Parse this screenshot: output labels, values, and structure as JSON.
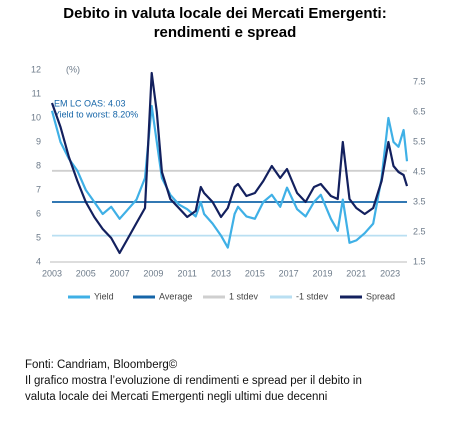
{
  "chart_data": {
    "type": "line",
    "title": "Debito in valuta locale dei Mercati Emergenti:",
    "subtitle": "rendimenti e spread",
    "y_unit": "(%)",
    "annotations": [
      "EM LC OAS: 4.03",
      "Yield to worst: 8.20%"
    ],
    "source": "Fonti: Candriam, Bloomberg©",
    "caption": [
      "Il grafico mostra l’evoluzione di rendimenti e spread per il debito in",
      "valuta locale dei Mercati Emergenti negli ultimi due decenni"
    ],
    "xlim": [
      2003,
      2024
    ],
    "xticks": [
      2003,
      2005,
      2007,
      2009,
      2011,
      2013,
      2015,
      2017,
      2019,
      2021,
      2023
    ],
    "ylim": [
      4,
      12
    ],
    "yticks": [
      4,
      5,
      6,
      7,
      8,
      9,
      10,
      11,
      12
    ],
    "y2lim": [
      1.5,
      7.9
    ],
    "y2ticks": [
      1.5,
      2.5,
      3.5,
      4.5,
      5.5,
      6.5,
      7.5
    ],
    "series": [
      {
        "name": "Yield",
        "color": "#3fb0e6",
        "x": [
          2003,
          2003.5,
          2004,
          2004.5,
          2005,
          2005.5,
          2006,
          2006.5,
          2007,
          2007.5,
          2008,
          2008.5,
          2008.9,
          2009.2,
          2009.5,
          2010,
          2010.5,
          2011,
          2011.5,
          2011.8,
          2012,
          2012.5,
          2013,
          2013.4,
          2013.8,
          2014,
          2014.5,
          2015,
          2015.5,
          2016,
          2016.5,
          2016.9,
          2017.5,
          2018,
          2018.5,
          2018.9,
          2019.5,
          2019.9,
          2020.2,
          2020.6,
          2021,
          2021.5,
          2022,
          2022.5,
          2022.9,
          2023.2,
          2023.5,
          2023.8,
          2024
        ],
        "values": [
          10.3,
          9.0,
          8.3,
          7.8,
          7.0,
          6.5,
          6.0,
          6.3,
          5.8,
          6.2,
          6.6,
          7.5,
          10.5,
          9.0,
          7.5,
          6.8,
          6.4,
          6.2,
          5.9,
          6.5,
          6.0,
          5.6,
          5.1,
          4.6,
          6.0,
          6.3,
          5.9,
          5.8,
          6.5,
          6.8,
          6.3,
          7.1,
          6.2,
          5.9,
          6.5,
          6.8,
          5.8,
          5.3,
          6.6,
          4.8,
          4.9,
          5.2,
          5.6,
          7.5,
          10.0,
          9.0,
          8.8,
          9.5,
          8.2
        ]
      },
      {
        "name": "Average",
        "color": "#1565a8",
        "x": [
          2003,
          2024
        ],
        "values": [
          6.5,
          6.5
        ]
      },
      {
        "name": "1 stdev",
        "color": "#cfcfcf",
        "x": [
          2003,
          2024
        ],
        "values": [
          7.8,
          7.8
        ]
      },
      {
        "name": "-1 stdev",
        "color": "#b9dff2",
        "x": [
          2003,
          2024
        ],
        "values": [
          5.1,
          5.1
        ]
      },
      {
        "name": "Spread",
        "color": "#13205e",
        "axis": "y2",
        "x": [
          2003,
          2003.5,
          2004,
          2004.5,
          2005,
          2005.5,
          2006,
          2006.5,
          2007,
          2007.5,
          2008,
          2008.5,
          2008.9,
          2009.2,
          2009.5,
          2010,
          2010.5,
          2011,
          2011.5,
          2011.8,
          2012,
          2012.5,
          2013,
          2013.4,
          2013.8,
          2014,
          2014.5,
          2015,
          2015.5,
          2016,
          2016.5,
          2016.9,
          2017.5,
          2018,
          2018.5,
          2018.9,
          2019.5,
          2019.9,
          2020.2,
          2020.6,
          2021,
          2021.5,
          2022,
          2022.5,
          2022.9,
          2023.2,
          2023.5,
          2023.8,
          2024
        ],
        "values": [
          6.8,
          6.0,
          5.0,
          4.2,
          3.5,
          3.0,
          2.6,
          2.3,
          1.8,
          2.3,
          2.8,
          3.3,
          7.8,
          6.5,
          4.5,
          3.6,
          3.3,
          3.0,
          3.2,
          4.0,
          3.8,
          3.5,
          3.0,
          3.3,
          4.0,
          4.1,
          3.7,
          3.8,
          4.2,
          4.7,
          4.3,
          4.6,
          3.8,
          3.5,
          4.0,
          4.1,
          3.7,
          3.6,
          5.5,
          3.6,
          3.3,
          3.1,
          3.3,
          4.2,
          5.5,
          4.7,
          4.5,
          4.4,
          4.03
        ]
      }
    ]
  }
}
